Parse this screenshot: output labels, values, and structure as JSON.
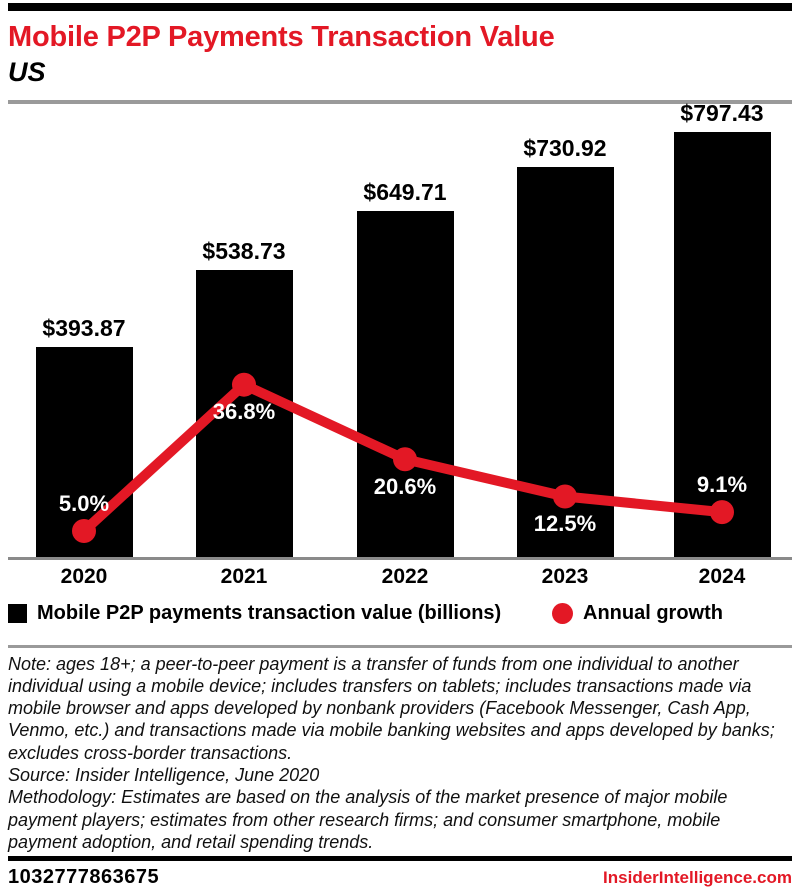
{
  "header": {
    "title": "Mobile P2P Payments Transaction Value",
    "subtitle": "US"
  },
  "chart_data": {
    "type": "bar",
    "combo": "bar+line",
    "title": "Mobile P2P Payments Transaction Value",
    "subtitle": "US",
    "categories": [
      "2020",
      "2021",
      "2022",
      "2023",
      "2024"
    ],
    "series": [
      {
        "name": "Mobile P2P payments transaction value (billions)",
        "type": "bar",
        "unit": "USD billions",
        "color": "#000000",
        "values": [
          393.87,
          538.73,
          649.71,
          730.92,
          797.43
        ],
        "labels": [
          "$393.87",
          "$538.73",
          "$649.71",
          "$730.92",
          "$797.43"
        ]
      },
      {
        "name": "Annual growth",
        "type": "line",
        "unit": "%",
        "color": "#e31825",
        "values": [
          5.0,
          36.8,
          20.6,
          12.5,
          9.1
        ],
        "labels": [
          "5.0%",
          "36.8%",
          "20.6%",
          "12.5%",
          "9.1%"
        ],
        "label_positions": [
          "above",
          "below",
          "below",
          "below",
          "above"
        ]
      }
    ],
    "xlabel": "",
    "ylabel": "",
    "bar_axis_range": [
      0,
      855
    ],
    "growth_axis_range": [
      0,
      40
    ],
    "grid": false,
    "legend_position": "bottom",
    "data_labels": true
  },
  "legend": {
    "bar_label": "Mobile P2P payments transaction value (billions)",
    "line_label": "Annual growth"
  },
  "footnotes": {
    "note": "Note: ages 18+; a peer-to-peer payment is a transfer of funds from one individual to another individual using a mobile device; includes transfers on tablets; includes transactions made via mobile browser and apps developed by nonbank providers (Facebook Messenger, Cash App, Venmo, etc.) and transactions made via mobile banking websites and apps developed by banks; excludes cross-border transactions.",
    "source": "Source: Insider Intelligence, June 2020",
    "methodology": "Methodology: Estimates are based on the analysis of the market presence of major mobile payment players; estimates from other research firms; and consumer smartphone, mobile payment adoption, and retail spending trends."
  },
  "footer": {
    "id": "1032777863675",
    "site": "InsiderIntelligence.com"
  },
  "theme": {
    "brand_red": "#e31825",
    "bar_black": "#000000",
    "rule_gray": "#9a9a9a"
  }
}
